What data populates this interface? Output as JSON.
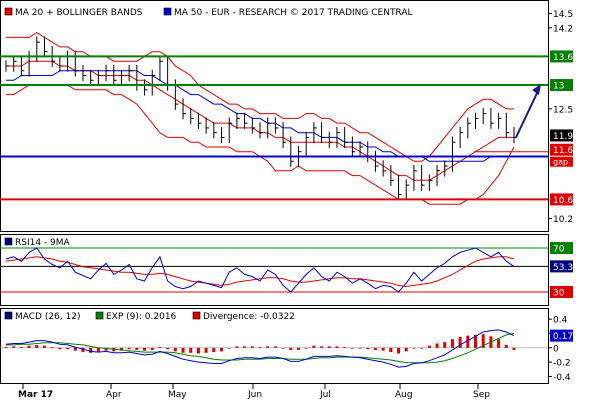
{
  "chart_data": {
    "type": "line",
    "months": [
      "Mar 17",
      "Apr",
      "May",
      "Jun",
      "Jul",
      "Aug",
      "Sep"
    ],
    "price_panel": {
      "legend": [
        {
          "name": "MA 20 + BOLLINGER BANDS",
          "color": "#e00000"
        },
        {
          "name": "MA 50 - EUR - RESEARCH © 2017 TRADING CENTRAL",
          "color": "#0000cc"
        }
      ],
      "ylim": [
        10.0,
        14.7
      ],
      "y_ticks": [
        "14.5",
        "14.2",
        "12.5",
        "10.2"
      ],
      "tick_values": [
        14.5,
        14.2,
        12.5,
        10.2
      ],
      "levels": [
        {
          "label": "13.6",
          "value": 13.6,
          "color": "#008000"
        },
        {
          "label": "13",
          "value": 13.0,
          "color": "#008000"
        },
        {
          "label": "11.6",
          "value": 11.6,
          "color": "#e00000",
          "note": "gap"
        },
        {
          "label": "10.6",
          "value": 10.6,
          "color": "#e00000"
        },
        {
          "label": "11.5",
          "value": 11.5,
          "color": "#0000cc"
        }
      ],
      "last_price": {
        "label": "11.9",
        "value": 11.9
      },
      "close": [
        13.4,
        13.5,
        13.3,
        13.6,
        13.9,
        13.7,
        13.5,
        13.4,
        13.6,
        13.3,
        13.2,
        13.1,
        13.2,
        13.3,
        13.1,
        13.2,
        13.3,
        13.0,
        12.9,
        13.2,
        13.5,
        13.0,
        12.6,
        12.4,
        12.3,
        12.2,
        12.1,
        12.0,
        11.9,
        12.2,
        12.3,
        12.2,
        12.1,
        12.0,
        12.2,
        12.1,
        11.8,
        11.4,
        11.6,
        11.9,
        12.1,
        11.9,
        11.8,
        12.0,
        11.8,
        11.6,
        11.7,
        11.5,
        11.3,
        11.2,
        11.0,
        10.7,
        10.9,
        11.2,
        10.9,
        11.0,
        11.2,
        11.3,
        11.8,
        12.0,
        12.2,
        12.3,
        12.4,
        12.2,
        12.3,
        12.0,
        11.9
      ],
      "ma20": [
        13.4,
        13.4,
        13.4,
        13.5,
        13.5,
        13.5,
        13.5,
        13.4,
        13.4,
        13.3,
        13.3,
        13.3,
        13.2,
        13.2,
        13.2,
        13.2,
        13.2,
        13.1,
        13.1,
        13.0,
        12.9,
        12.8,
        12.7,
        12.6,
        12.5,
        12.4,
        12.3,
        12.2,
        12.2,
        12.2,
        12.1,
        12.1,
        12.1,
        12.0,
        12.0,
        11.9,
        11.9,
        11.8,
        11.8,
        11.8,
        11.8,
        11.8,
        11.8,
        11.8,
        11.7,
        11.7,
        11.6,
        11.5,
        11.4,
        11.3,
        11.2,
        11.1,
        11.1,
        11.0,
        11.0,
        11.0,
        11.1,
        11.2,
        11.3,
        11.4,
        11.5,
        11.6,
        11.7,
        11.8,
        11.9,
        11.9,
        11.9
      ],
      "bb_upper": [
        14.0,
        14.0,
        14.0,
        14.0,
        14.1,
        14.0,
        13.9,
        13.8,
        13.8,
        13.7,
        13.7,
        13.6,
        13.6,
        13.6,
        13.5,
        13.5,
        13.5,
        13.5,
        13.6,
        13.7,
        13.7,
        13.6,
        13.4,
        13.3,
        13.2,
        13.0,
        12.9,
        12.8,
        12.7,
        12.6,
        12.6,
        12.5,
        12.5,
        12.4,
        12.4,
        12.4,
        12.3,
        12.3,
        12.3,
        12.4,
        12.4,
        12.3,
        12.3,
        12.2,
        12.2,
        12.1,
        12.0,
        12.0,
        11.9,
        11.8,
        11.7,
        11.6,
        11.5,
        11.4,
        11.4,
        11.5,
        11.7,
        11.9,
        12.1,
        12.3,
        12.5,
        12.6,
        12.7,
        12.7,
        12.6,
        12.5,
        12.5
      ],
      "bb_lower": [
        12.8,
        12.8,
        12.9,
        13.0,
        13.0,
        13.0,
        13.0,
        13.0,
        13.0,
        12.9,
        12.9,
        12.9,
        12.9,
        12.9,
        12.8,
        12.8,
        12.7,
        12.6,
        12.4,
        12.2,
        12.0,
        11.9,
        11.9,
        11.9,
        11.8,
        11.8,
        11.7,
        11.7,
        11.7,
        11.7,
        11.6,
        11.6,
        11.6,
        11.5,
        11.4,
        11.2,
        11.2,
        11.2,
        11.3,
        11.2,
        11.2,
        11.2,
        11.2,
        11.2,
        11.2,
        11.1,
        11.1,
        11.0,
        10.9,
        10.8,
        10.7,
        10.6,
        10.6,
        10.6,
        10.6,
        10.5,
        10.5,
        10.5,
        10.5,
        10.5,
        10.6,
        10.6,
        10.7,
        10.9,
        11.1,
        11.4,
        11.7
      ],
      "ma50": [
        13.1,
        13.1,
        13.2,
        13.2,
        13.2,
        13.2,
        13.2,
        13.3,
        13.3,
        13.3,
        13.3,
        13.3,
        13.3,
        13.3,
        13.3,
        13.3,
        13.3,
        13.3,
        13.2,
        13.2,
        13.1,
        13.0,
        13.0,
        12.9,
        12.8,
        12.8,
        12.7,
        12.6,
        12.6,
        12.5,
        12.4,
        12.4,
        12.3,
        12.3,
        12.2,
        12.2,
        12.1,
        12.1,
        12.0,
        12.0,
        12.0,
        11.9,
        11.9,
        11.9,
        11.8,
        11.8,
        11.8,
        11.7,
        11.7,
        11.6,
        11.6,
        11.5,
        11.5,
        11.5,
        11.5,
        11.4,
        11.4,
        11.4,
        11.4,
        11.4,
        11.4,
        11.4,
        11.4,
        11.5,
        11.5,
        11.5,
        11.5
      ]
    },
    "rsi_panel": {
      "legend": [
        {
          "name": "RSI14 - 9MA",
          "color": "#000080"
        }
      ],
      "ylim": [
        20,
        80
      ],
      "levels": [
        {
          "label": "70",
          "value": 70,
          "color": "#008000"
        },
        {
          "label": "53.3",
          "value": 53.3,
          "color": "#000080"
        },
        {
          "label": "30",
          "value": 30,
          "color": "#e00000"
        }
      ],
      "rsi": [
        60,
        62,
        58,
        66,
        70,
        60,
        55,
        52,
        58,
        48,
        45,
        42,
        50,
        56,
        46,
        50,
        55,
        42,
        40,
        52,
        62,
        40,
        35,
        33,
        35,
        40,
        38,
        36,
        34,
        48,
        52,
        46,
        44,
        40,
        50,
        46,
        36,
        30,
        38,
        46,
        52,
        44,
        40,
        48,
        44,
        38,
        42,
        38,
        33,
        36,
        35,
        30,
        38,
        48,
        40,
        46,
        52,
        56,
        62,
        66,
        68,
        70,
        66,
        62,
        66,
        58,
        53.3
      ],
      "ma9": [
        58,
        59,
        60,
        61,
        62,
        61,
        60,
        58,
        57,
        55,
        53,
        52,
        51,
        50,
        49,
        48,
        48,
        47,
        46,
        46,
        47,
        46,
        44,
        42,
        40,
        39,
        38,
        37,
        36,
        37,
        39,
        40,
        41,
        42,
        43,
        43,
        42,
        40,
        39,
        39,
        40,
        41,
        42,
        43,
        43,
        42,
        42,
        41,
        40,
        39,
        38,
        36,
        35,
        36,
        37,
        38,
        40,
        43,
        46,
        50,
        54,
        58,
        60,
        61,
        62,
        62,
        60
      ]
    },
    "macd_panel": {
      "legend": [
        {
          "name": "MACD (26, 12)",
          "color": "#000080"
        },
        {
          "name": "EXP (9): 0.2016",
          "color": "#008000"
        },
        {
          "name": "Divergence: -0.0322",
          "color": "#e00000"
        }
      ],
      "ylim": [
        -0.45,
        0.5
      ],
      "y_ticks": [
        "0.4",
        "0.2",
        "0",
        "-0.2",
        "-0.4"
      ],
      "tick_values": [
        0.4,
        0.2,
        0,
        -0.2,
        -0.4
      ],
      "last_value": {
        "label": "0.17",
        "value": 0.17
      },
      "macd": [
        0.05,
        0.06,
        0.06,
        0.08,
        0.1,
        0.1,
        0.08,
        0.05,
        0.04,
        0.01,
        -0.02,
        -0.05,
        -0.06,
        -0.05,
        -0.07,
        -0.07,
        -0.06,
        -0.08,
        -0.1,
        -0.09,
        -0.05,
        -0.08,
        -0.12,
        -0.16,
        -0.18,
        -0.2,
        -0.21,
        -0.22,
        -0.22,
        -0.18,
        -0.15,
        -0.14,
        -0.14,
        -0.15,
        -0.13,
        -0.13,
        -0.15,
        -0.19,
        -0.19,
        -0.16,
        -0.12,
        -0.12,
        -0.12,
        -0.11,
        -0.12,
        -0.13,
        -0.14,
        -0.16,
        -0.18,
        -0.2,
        -0.23,
        -0.27,
        -0.26,
        -0.22,
        -0.21,
        -0.18,
        -0.14,
        -0.1,
        -0.03,
        0.04,
        0.1,
        0.16,
        0.22,
        0.24,
        0.25,
        0.22,
        0.17
      ],
      "signal": [
        0.04,
        0.04,
        0.05,
        0.05,
        0.06,
        0.07,
        0.07,
        0.07,
        0.06,
        0.05,
        0.04,
        0.02,
        0.0,
        -0.01,
        -0.02,
        -0.03,
        -0.04,
        -0.05,
        -0.06,
        -0.06,
        -0.06,
        -0.06,
        -0.07,
        -0.09,
        -0.11,
        -0.12,
        -0.14,
        -0.16,
        -0.17,
        -0.17,
        -0.17,
        -0.16,
        -0.16,
        -0.16,
        -0.15,
        -0.15,
        -0.15,
        -0.16,
        -0.16,
        -0.16,
        -0.15,
        -0.14,
        -0.14,
        -0.13,
        -0.13,
        -0.13,
        -0.13,
        -0.14,
        -0.15,
        -0.16,
        -0.17,
        -0.19,
        -0.21,
        -0.21,
        -0.21,
        -0.21,
        -0.2,
        -0.18,
        -0.15,
        -0.11,
        -0.07,
        -0.02,
        0.03,
        0.08,
        0.13,
        0.18,
        0.2016
      ],
      "divergence": [
        0.01,
        0.02,
        0.01,
        0.03,
        0.04,
        0.03,
        0.01,
        -0.02,
        -0.02,
        -0.04,
        -0.06,
        -0.07,
        -0.06,
        -0.04,
        -0.05,
        -0.04,
        -0.02,
        -0.03,
        -0.04,
        -0.03,
        0.01,
        -0.02,
        -0.05,
        -0.07,
        -0.07,
        -0.08,
        -0.07,
        -0.06,
        -0.05,
        -0.01,
        0.02,
        0.02,
        0.02,
        0.01,
        0.02,
        0.02,
        0.0,
        -0.03,
        -0.03,
        0.0,
        0.03,
        0.02,
        0.02,
        0.02,
        0.01,
        0.0,
        -0.01,
        -0.02,
        -0.03,
        -0.04,
        -0.06,
        -0.08,
        -0.05,
        -0.01,
        0.0,
        0.03,
        0.06,
        0.08,
        0.12,
        0.15,
        0.17,
        0.18,
        0.19,
        0.16,
        0.12,
        0.04,
        -0.0322
      ]
    }
  }
}
